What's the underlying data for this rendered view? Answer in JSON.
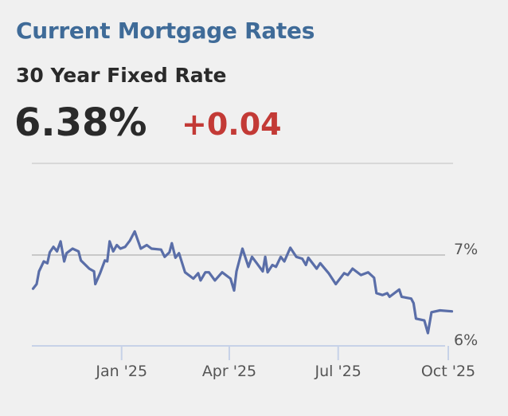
{
  "header": {
    "title": "Current Mortgage Rates",
    "product": "30 Year Fixed Rate",
    "rate": "6.38%",
    "change": "+0.04"
  },
  "colors": {
    "title": "#3f6b98",
    "change": "#c33a36",
    "line": "#5a6ea8",
    "grid": "#c8c8c8",
    "axis": "#c7d2e8"
  },
  "chart_data": {
    "type": "line",
    "title": "",
    "xlabel": "",
    "ylabel": "",
    "xlim": [
      "2024-10-18",
      "2025-10-05"
    ],
    "ylim": [
      6,
      7.3
    ],
    "grid": "horizontal at 7%",
    "y_ticks": [
      {
        "value": 7,
        "label": "7%"
      },
      {
        "value": 6,
        "label": "6%"
      }
    ],
    "x_ticks": [
      {
        "date": "2025-01-01",
        "label": "Jan '25"
      },
      {
        "date": "2025-04-01",
        "label": "Apr '25"
      },
      {
        "date": "2025-07-01",
        "label": "Jul '25"
      },
      {
        "date": "2025-10-01",
        "label": "Oct '25"
      }
    ],
    "series": [
      {
        "points": [
          [
            "2024-10-19",
            6.63
          ],
          [
            "2024-10-22",
            6.68
          ],
          [
            "2024-10-24",
            6.82
          ],
          [
            "2024-10-28",
            6.93
          ],
          [
            "2024-10-31",
            6.91
          ],
          [
            "2024-11-02",
            7.03
          ],
          [
            "2024-11-05",
            7.09
          ],
          [
            "2024-11-08",
            7.04
          ],
          [
            "2024-11-11",
            7.15
          ],
          [
            "2024-11-14",
            6.93
          ],
          [
            "2024-11-16",
            7.02
          ],
          [
            "2024-11-21",
            7.07
          ],
          [
            "2024-11-26",
            7.04
          ],
          [
            "2024-11-28",
            6.94
          ],
          [
            "2024-12-05",
            6.85
          ],
          [
            "2024-12-09",
            6.82
          ],
          [
            "2024-12-10",
            6.68
          ],
          [
            "2024-12-14",
            6.8
          ],
          [
            "2024-12-18",
            6.94
          ],
          [
            "2024-12-20",
            6.93
          ],
          [
            "2024-12-22",
            7.15
          ],
          [
            "2024-12-25",
            7.04
          ],
          [
            "2024-12-28",
            7.11
          ],
          [
            "2024-12-31",
            7.07
          ],
          [
            "2025-01-04",
            7.09
          ],
          [
            "2025-01-08",
            7.16
          ],
          [
            "2025-01-12",
            7.26
          ],
          [
            "2025-01-17",
            7.07
          ],
          [
            "2025-01-22",
            7.11
          ],
          [
            "2025-01-26",
            7.07
          ],
          [
            "2025-02-03",
            7.06
          ],
          [
            "2025-02-06",
            6.98
          ],
          [
            "2025-02-10",
            7.03
          ],
          [
            "2025-02-12",
            7.13
          ],
          [
            "2025-02-15",
            6.97
          ],
          [
            "2025-02-18",
            7.02
          ],
          [
            "2025-02-23",
            6.81
          ],
          [
            "2025-03-02",
            6.74
          ],
          [
            "2025-03-06",
            6.8
          ],
          [
            "2025-03-08",
            6.72
          ],
          [
            "2025-03-12",
            6.81
          ],
          [
            "2025-03-15",
            6.81
          ],
          [
            "2025-03-20",
            6.72
          ],
          [
            "2025-03-26",
            6.81
          ],
          [
            "2025-04-02",
            6.74
          ],
          [
            "2025-04-05",
            6.61
          ],
          [
            "2025-04-07",
            6.82
          ],
          [
            "2025-04-12",
            7.07
          ],
          [
            "2025-04-17",
            6.87
          ],
          [
            "2025-04-20",
            6.98
          ],
          [
            "2025-04-24",
            6.91
          ],
          [
            "2025-04-29",
            6.82
          ],
          [
            "2025-05-01",
            6.98
          ],
          [
            "2025-05-03",
            6.81
          ],
          [
            "2025-05-07",
            6.89
          ],
          [
            "2025-05-10",
            6.87
          ],
          [
            "2025-05-14",
            6.98
          ],
          [
            "2025-05-17",
            6.93
          ],
          [
            "2025-05-22",
            7.08
          ],
          [
            "2025-05-27",
            6.98
          ],
          [
            "2025-06-01",
            6.96
          ],
          [
            "2025-06-04",
            6.89
          ],
          [
            "2025-06-06",
            6.97
          ],
          [
            "2025-06-13",
            6.85
          ],
          [
            "2025-06-16",
            6.91
          ],
          [
            "2025-06-23",
            6.8
          ],
          [
            "2025-06-29",
            6.68
          ],
          [
            "2025-07-06",
            6.8
          ],
          [
            "2025-07-09",
            6.78
          ],
          [
            "2025-07-13",
            6.85
          ],
          [
            "2025-07-20",
            6.78
          ],
          [
            "2025-07-26",
            6.81
          ],
          [
            "2025-07-31",
            6.75
          ],
          [
            "2025-08-02",
            6.58
          ],
          [
            "2025-08-07",
            6.56
          ],
          [
            "2025-08-11",
            6.58
          ],
          [
            "2025-08-13",
            6.54
          ],
          [
            "2025-08-21",
            6.62
          ],
          [
            "2025-08-23",
            6.54
          ],
          [
            "2025-08-31",
            6.52
          ],
          [
            "2025-09-02",
            6.47
          ],
          [
            "2025-09-04",
            6.3
          ],
          [
            "2025-09-11",
            6.28
          ],
          [
            "2025-09-14",
            6.14
          ],
          [
            "2025-09-17",
            6.37
          ],
          [
            "2025-09-24",
            6.39
          ],
          [
            "2025-10-04",
            6.38
          ]
        ]
      }
    ]
  }
}
